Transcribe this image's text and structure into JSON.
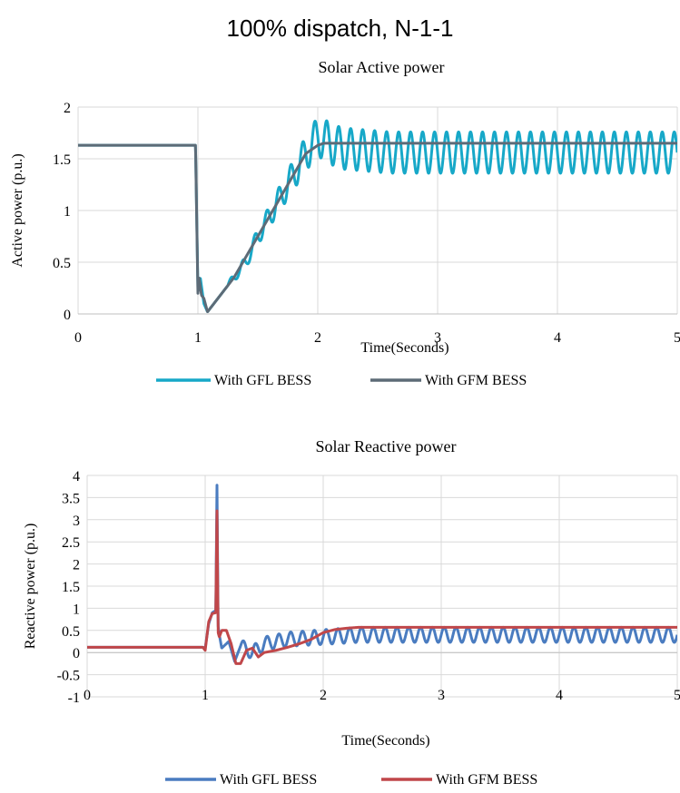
{
  "figure": {
    "title": "100% dispatch, N-1-1"
  },
  "chart_data": [
    {
      "type": "line",
      "title": "Solar Active power",
      "xlabel": "Time(Seconds)",
      "ylabel": "Active power (p.u.)",
      "xlim": [
        0,
        5
      ],
      "ylim": [
        0,
        2
      ],
      "xticks": [
        "0",
        "1",
        "2",
        "3",
        "4",
        "5"
      ],
      "yticks": [
        "0",
        "0.5",
        "1",
        "1.5",
        "2"
      ],
      "grid": true,
      "legend_position": "bottom",
      "series": [
        {
          "name": "With GFL BESS",
          "color": "#17a8c8",
          "x": [
            0,
            0.98,
            1.0,
            1.02,
            1.05,
            1.08,
            1.12,
            1.2,
            1.3,
            1.4,
            1.5,
            1.6,
            1.7,
            1.8,
            1.9,
            2.0,
            2.1,
            2.2,
            2.4,
            2.6,
            2.8,
            3.0,
            3.5,
            4.0,
            4.5,
            5.0
          ],
          "y": [
            1.63,
            1.63,
            0.25,
            0.35,
            0.1,
            0.02,
            0.08,
            0.2,
            0.35,
            0.5,
            0.75,
            0.95,
            1.15,
            1.35,
            1.55,
            1.72,
            1.65,
            1.6,
            1.58,
            1.56,
            1.56,
            1.56,
            1.56,
            1.56,
            1.56,
            1.56
          ],
          "oscillation": {
            "start": 1.25,
            "period": 0.1,
            "amplitude_start": 0.03,
            "amplitude_end": 0.2
          }
        },
        {
          "name": "With GFM BESS",
          "color": "#5d6b77",
          "x": [
            0,
            0.98,
            1.0,
            1.01,
            1.03,
            1.05,
            1.08,
            1.12,
            1.2,
            1.3,
            1.4,
            1.5,
            1.6,
            1.7,
            1.8,
            1.9,
            2.0,
            2.05,
            2.5,
            3.0,
            4.0,
            5.0
          ],
          "y": [
            1.63,
            1.63,
            0.2,
            0.35,
            0.18,
            0.15,
            0.02,
            0.08,
            0.2,
            0.35,
            0.55,
            0.75,
            0.95,
            1.15,
            1.35,
            1.55,
            1.63,
            1.65,
            1.65,
            1.65,
            1.65,
            1.65
          ]
        }
      ]
    },
    {
      "type": "line",
      "title": "Solar Reactive power",
      "xlabel": "Time(Seconds)",
      "ylabel": "Reactive power (p.u.)",
      "xlim": [
        0,
        5
      ],
      "ylim": [
        -1,
        4
      ],
      "xticks": [
        "0",
        "1",
        "2",
        "3",
        "4",
        "5"
      ],
      "yticks": [
        "-1",
        "-0.5",
        "0",
        "0.5",
        "1",
        "1.5",
        "2",
        "2.5",
        "3",
        "3.5",
        "4"
      ],
      "grid": true,
      "legend_position": "bottom",
      "series": [
        {
          "name": "With GFL BESS",
          "color": "#4a7cc0",
          "x": [
            0,
            0.98,
            1.0,
            1.03,
            1.06,
            1.09,
            1.1,
            1.11,
            1.12,
            1.14,
            1.2,
            1.25,
            1.3,
            1.4,
            1.5,
            1.7,
            2.0,
            2.3,
            3.0,
            4.0,
            5.0
          ],
          "y": [
            0.12,
            0.12,
            0.1,
            0.65,
            0.9,
            0.95,
            3.78,
            0.6,
            0.4,
            0.1,
            0.25,
            -0.2,
            0.15,
            0.0,
            0.2,
            0.3,
            0.35,
            0.4,
            0.4,
            0.4,
            0.4
          ],
          "oscillation": {
            "start": 1.3,
            "period": 0.1,
            "amplitude_start": 0.15,
            "amplitude_end": 0.17
          }
        },
        {
          "name": "With GFM BESS",
          "color": "#c0474a",
          "x": [
            0,
            0.98,
            1.0,
            1.03,
            1.06,
            1.09,
            1.1,
            1.11,
            1.12,
            1.14,
            1.18,
            1.22,
            1.26,
            1.3,
            1.35,
            1.4,
            1.45,
            1.5,
            1.6,
            1.7,
            1.8,
            1.9,
            2.0,
            2.1,
            2.2,
            2.3,
            2.5,
            3.0,
            4.0,
            5.0
          ],
          "y": [
            0.12,
            0.12,
            0.05,
            0.7,
            0.88,
            0.9,
            3.2,
            0.45,
            0.35,
            0.5,
            0.5,
            0.2,
            -0.25,
            -0.25,
            0.05,
            0.1,
            -0.1,
            0.0,
            0.05,
            0.12,
            0.2,
            0.3,
            0.45,
            0.52,
            0.55,
            0.57,
            0.57,
            0.57,
            0.57,
            0.57
          ]
        }
      ]
    }
  ]
}
